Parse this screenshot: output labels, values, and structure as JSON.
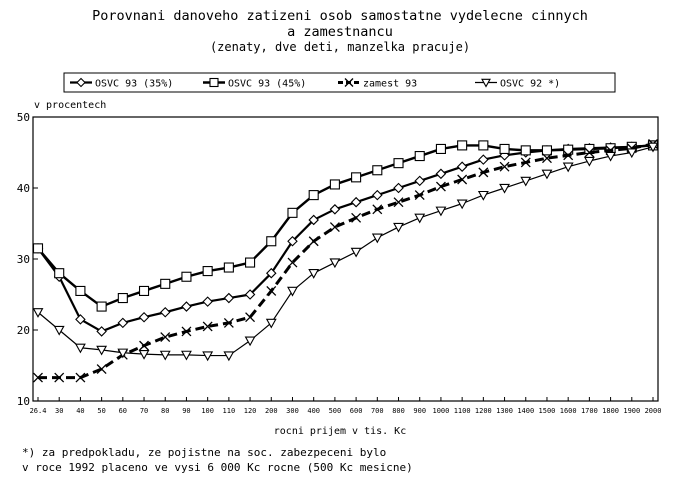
{
  "chart_data": {
    "type": "line",
    "title": "Porovnani danoveho zatizeni osob samostatne vydelecne cinnych",
    "title_line2": "a zamestnancu",
    "subtitle": "(zenaty, dve deti, manzelka pracuje)",
    "ylabel": "v procentech",
    "xlabel": "rocni prijem v tis. Kc",
    "ylim": [
      10,
      50
    ],
    "yticks": [
      "10",
      "20",
      "30",
      "40",
      "50"
    ],
    "grid": false,
    "legend_position": "top",
    "x": [
      "26.4",
      "30",
      "40",
      "50",
      "60",
      "70",
      "80",
      "90",
      "100",
      "110",
      "120",
      "200",
      "300",
      "400",
      "500",
      "600",
      "700",
      "800",
      "900",
      "1000",
      "1100",
      "1200",
      "1300",
      "1400",
      "1500",
      "1600",
      "1700",
      "1800",
      "1900",
      "2000"
    ],
    "series": [
      {
        "name": "OSVC 93 (35%)",
        "marker": "diamond",
        "line": "solid",
        "values": [
          31.5,
          27.5,
          21.5,
          19.8,
          21.0,
          21.8,
          22.5,
          23.3,
          24.0,
          24.5,
          25.0,
          28.0,
          32.5,
          35.5,
          37.0,
          38.0,
          39.0,
          40.0,
          41.0,
          42.0,
          43.0,
          44.0,
          44.6,
          45.0,
          45.3,
          45.5,
          45.6,
          45.7,
          45.8,
          46.0
        ]
      },
      {
        "name": "OSVC 93 (45%)",
        "marker": "square",
        "line": "solid",
        "values": [
          31.5,
          28.0,
          25.5,
          23.3,
          24.5,
          25.5,
          26.5,
          27.5,
          28.3,
          28.8,
          29.5,
          32.5,
          36.5,
          39.0,
          40.5,
          41.5,
          42.5,
          43.5,
          44.5,
          45.5,
          46.0,
          46.0,
          45.5,
          45.3,
          45.3,
          45.4,
          45.5,
          45.6,
          45.8,
          46.0
        ]
      },
      {
        "name": "zamest 93",
        "marker": "x",
        "line": "dashed",
        "values": [
          13.3,
          13.3,
          13.3,
          14.5,
          16.5,
          17.8,
          19.0,
          19.8,
          20.5,
          21.0,
          21.8,
          25.5,
          29.5,
          32.5,
          34.5,
          35.8,
          37.0,
          38.0,
          39.0,
          40.2,
          41.2,
          42.2,
          43.0,
          43.6,
          44.2,
          44.6,
          45.0,
          45.3,
          45.6,
          46.2
        ]
      },
      {
        "name": "OSVC 92 *)",
        "marker": "triangle-down",
        "line": "solid",
        "values": [
          22.5,
          20.0,
          17.5,
          17.2,
          16.8,
          16.6,
          16.5,
          16.5,
          16.4,
          16.4,
          18.5,
          21.0,
          25.5,
          28.0,
          29.5,
          31.0,
          33.0,
          34.5,
          35.8,
          36.8,
          37.8,
          39.0,
          40.0,
          41.0,
          42.0,
          43.0,
          43.8,
          44.5,
          45.0,
          45.8
        ]
      }
    ]
  },
  "legend_labels": [
    "OSVC 93 (35%)",
    "OSVC 93 (45%)",
    "zamest 93",
    "OSVC 92 *)"
  ],
  "footnote_line1": "*) za predpokladu, ze pojistne na soc. zabezpeceni bylo",
  "footnote_line2": "v roce 1992 placeno ve vysi 6 000 Kc rocne (500 Kc mesicne)"
}
